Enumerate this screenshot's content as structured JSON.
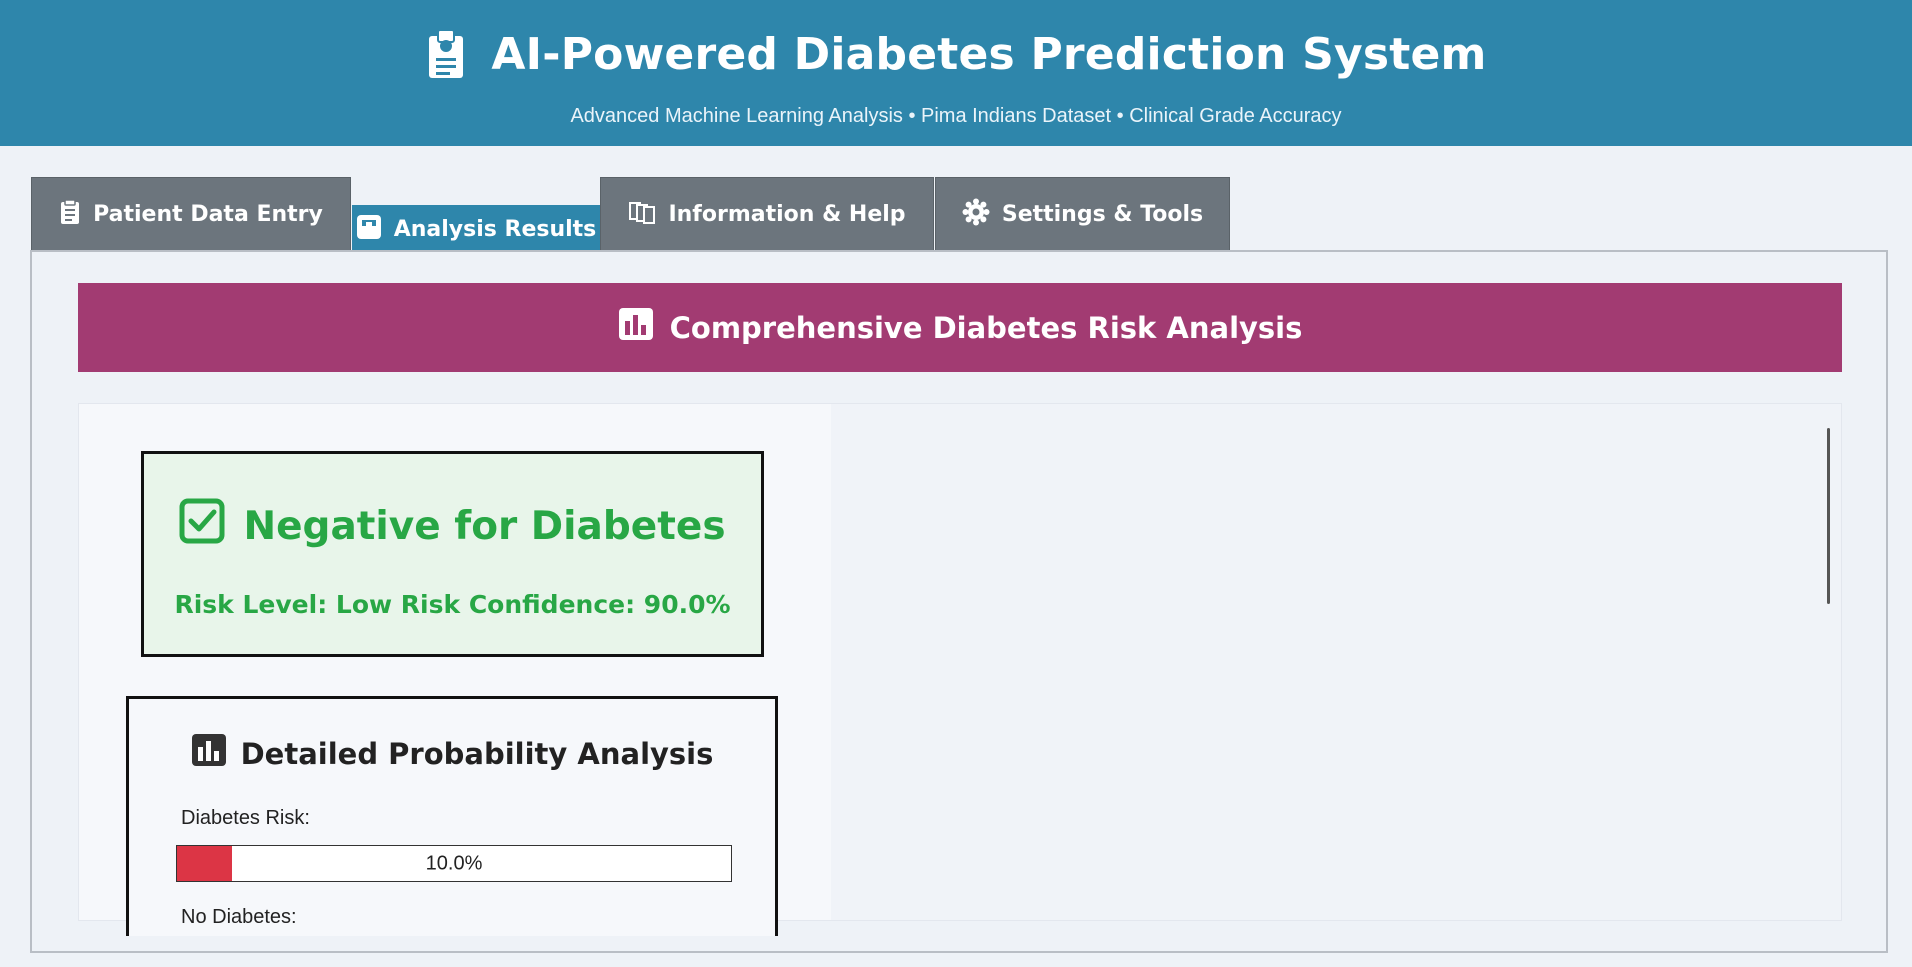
{
  "header": {
    "title": "AI-Powered Diabetes Prediction System",
    "subtitle": "Advanced Machine Learning Analysis • Pima Indians Dataset • Clinical Grade Accuracy",
    "icon": "clipboard-icon"
  },
  "tabs": [
    {
      "label": "Patient Data Entry",
      "icon": "clipboard-list-icon",
      "active": false
    },
    {
      "label": "Analysis Results",
      "icon": "chart-box-icon",
      "active": true
    },
    {
      "label": "Information & Help",
      "icon": "books-icon",
      "active": false
    },
    {
      "label": "Settings & Tools",
      "icon": "gear-icon",
      "active": false
    }
  ],
  "section": {
    "title": "Comprehensive Diabetes Risk Analysis",
    "icon": "bar-chart-icon"
  },
  "result": {
    "title": "Negative for Diabetes",
    "subtitle": "Risk Level: Low Risk Confidence: 90.0%",
    "icon": "check-box-icon"
  },
  "probability": {
    "title": "Detailed Probability Analysis",
    "icon": "bar-chart-icon",
    "diabetes_label": "Diabetes Risk:",
    "diabetes_value": 0.1,
    "diabetes_text": "10.0%",
    "no_diabetes_label": "No Diabetes:"
  },
  "colors": {
    "header": "#2e86ab",
    "banner": "#a23b72",
    "positive_green": "#28a745",
    "risk_red": "#dc3545",
    "tab_gray": "#6c757d"
  }
}
